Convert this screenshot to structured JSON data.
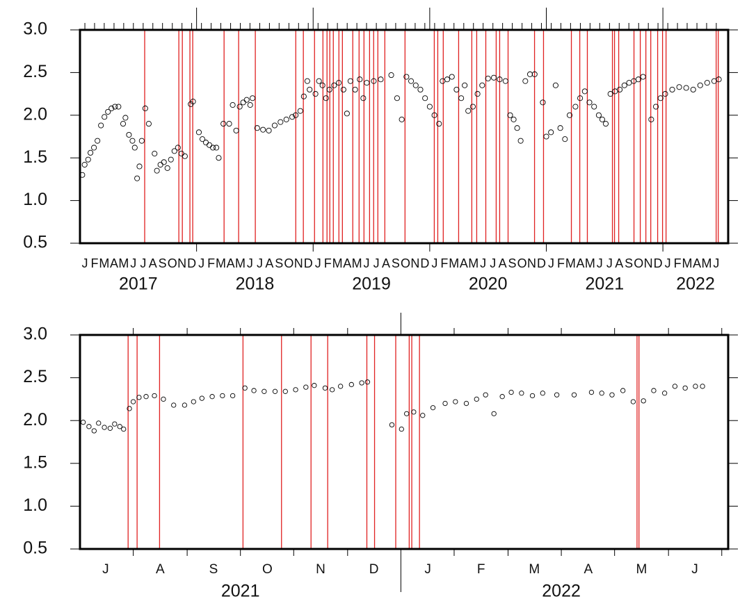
{
  "chart_data": [
    {
      "type": "scatter",
      "color": "#000000",
      "event_color": "#e02020",
      "xlim": [
        2017.0,
        2022.56
      ],
      "ylim": [
        0.5,
        3.0
      ],
      "yticks": [
        0.5,
        {
          "value": 1,
          "label": "1.0"
        },
        1.5,
        {
          "value": 2,
          "label": "2.0"
        },
        2.5,
        {
          "value": 3,
          "label": "3.0"
        }
      ],
      "xticks": [
        {
          "value": 2017.042,
          "label": "J"
        },
        {
          "value": 2017.125,
          "label": "F"
        },
        {
          "value": 2017.208,
          "label": "M"
        },
        {
          "value": 2017.292,
          "label": "A"
        },
        {
          "value": 2017.375,
          "label": "M"
        },
        {
          "value": 2017.458,
          "label": "J"
        },
        {
          "value": 2017.542,
          "label": "J"
        },
        {
          "value": 2017.625,
          "label": "A"
        },
        {
          "value": 2017.708,
          "label": "S"
        },
        {
          "value": 2017.792,
          "label": "O"
        },
        {
          "value": 2017.875,
          "label": "N"
        },
        {
          "value": 2017.958,
          "label": "D"
        },
        {
          "value": 2018.042,
          "label": "J"
        },
        {
          "value": 2018.125,
          "label": "F"
        },
        {
          "value": 2018.208,
          "label": "M"
        },
        {
          "value": 2018.292,
          "label": "A"
        },
        {
          "value": 2018.375,
          "label": "M"
        },
        {
          "value": 2018.458,
          "label": "J"
        },
        {
          "value": 2018.542,
          "label": "J"
        },
        {
          "value": 2018.625,
          "label": "A"
        },
        {
          "value": 2018.708,
          "label": "S"
        },
        {
          "value": 2018.792,
          "label": "O"
        },
        {
          "value": 2018.875,
          "label": "N"
        },
        {
          "value": 2018.958,
          "label": "D"
        },
        {
          "value": 2019.042,
          "label": "J"
        },
        {
          "value": 2019.125,
          "label": "F"
        },
        {
          "value": 2019.208,
          "label": "M"
        },
        {
          "value": 2019.292,
          "label": "A"
        },
        {
          "value": 2019.375,
          "label": "M"
        },
        {
          "value": 2019.458,
          "label": "J"
        },
        {
          "value": 2019.542,
          "label": "J"
        },
        {
          "value": 2019.625,
          "label": "A"
        },
        {
          "value": 2019.708,
          "label": "S"
        },
        {
          "value": 2019.792,
          "label": "O"
        },
        {
          "value": 2019.875,
          "label": "N"
        },
        {
          "value": 2019.958,
          "label": "D"
        },
        {
          "value": 2020.042,
          "label": "J"
        },
        {
          "value": 2020.125,
          "label": "F"
        },
        {
          "value": 2020.208,
          "label": "M"
        },
        {
          "value": 2020.292,
          "label": "A"
        },
        {
          "value": 2020.375,
          "label": "M"
        },
        {
          "value": 2020.458,
          "label": "J"
        },
        {
          "value": 2020.542,
          "label": "J"
        },
        {
          "value": 2020.625,
          "label": "A"
        },
        {
          "value": 2020.708,
          "label": "S"
        },
        {
          "value": 2020.792,
          "label": "O"
        },
        {
          "value": 2020.875,
          "label": "N"
        },
        {
          "value": 2020.958,
          "label": "D"
        },
        {
          "value": 2021.042,
          "label": "J"
        },
        {
          "value": 2021.125,
          "label": "F"
        },
        {
          "value": 2021.208,
          "label": "M"
        },
        {
          "value": 2021.292,
          "label": "A"
        },
        {
          "value": 2021.375,
          "label": "M"
        },
        {
          "value": 2021.458,
          "label": "J"
        },
        {
          "value": 2021.542,
          "label": "J"
        },
        {
          "value": 2021.625,
          "label": "A"
        },
        {
          "value": 2021.708,
          "label": "S"
        },
        {
          "value": 2021.792,
          "label": "O"
        },
        {
          "value": 2021.875,
          "label": "N"
        },
        {
          "value": 2021.958,
          "label": "D"
        },
        {
          "value": 2022.042,
          "label": "J"
        },
        {
          "value": 2022.125,
          "label": "F"
        },
        {
          "value": 2022.208,
          "label": "M"
        },
        {
          "value": 2022.292,
          "label": "A"
        },
        {
          "value": 2022.375,
          "label": "M"
        },
        {
          "value": 2022.458,
          "label": "J"
        }
      ],
      "year_ticks": [
        2018,
        2019,
        2020,
        2021,
        2022
      ],
      "year_labels": [
        {
          "value": 2017.5,
          "label": "2017"
        },
        {
          "value": 2018.5,
          "label": "2018"
        },
        {
          "value": 2019.5,
          "label": "2019"
        },
        {
          "value": 2020.5,
          "label": "2020"
        },
        {
          "value": 2021.5,
          "label": "2021"
        },
        {
          "value": 2022.28,
          "label": "2022"
        }
      ],
      "x": [
        2017.02,
        2017.04,
        2017.07,
        2017.09,
        2017.12,
        2017.15,
        2017.18,
        2017.21,
        2017.24,
        2017.27,
        2017.3,
        2017.33,
        2017.37,
        2017.39,
        2017.42,
        2017.45,
        2017.47,
        2017.49,
        2017.51,
        2017.53,
        2017.56,
        2017.59,
        2017.64,
        2017.66,
        2017.69,
        2017.72,
        2017.75,
        2017.78,
        2017.81,
        2017.84,
        2017.87,
        2017.9,
        2017.95,
        2017.97,
        2018.02,
        2018.05,
        2018.08,
        2018.11,
        2018.14,
        2018.17,
        2018.19,
        2018.23,
        2018.28,
        2018.31,
        2018.34,
        2018.37,
        2018.4,
        2018.43,
        2018.46,
        2018.48,
        2018.52,
        2018.57,
        2018.62,
        2018.67,
        2018.72,
        2018.77,
        2018.82,
        2018.85,
        2018.89,
        2018.92,
        2018.95,
        2018.97,
        2019.02,
        2019.05,
        2019.08,
        2019.11,
        2019.14,
        2019.18,
        2019.22,
        2019.26,
        2019.29,
        2019.32,
        2019.36,
        2019.4,
        2019.43,
        2019.46,
        2019.52,
        2019.58,
        2019.67,
        2019.72,
        2019.76,
        2019.8,
        2019.84,
        2019.88,
        2019.92,
        2019.96,
        2020.0,
        2020.04,
        2020.08,
        2020.11,
        2020.15,
        2020.19,
        2020.23,
        2020.27,
        2020.3,
        2020.33,
        2020.37,
        2020.41,
        2020.45,
        2020.5,
        2020.55,
        2020.6,
        2020.65,
        2020.69,
        2020.72,
        2020.75,
        2020.78,
        2020.82,
        2020.86,
        2020.9,
        2020.97,
        2021.0,
        2021.04,
        2021.08,
        2021.12,
        2021.16,
        2021.2,
        2021.25,
        2021.29,
        2021.33,
        2021.37,
        2021.41,
        2021.45,
        2021.48,
        2021.51,
        2021.55,
        2021.59,
        2021.63,
        2021.67,
        2021.71,
        2021.75,
        2021.79,
        2021.83,
        2021.9,
        2021.94,
        2021.98,
        2022.02,
        2022.08,
        2022.14,
        2022.2,
        2022.26,
        2022.32,
        2022.38,
        2022.44,
        2022.48
      ],
      "values": [
        1.3,
        1.42,
        1.48,
        1.56,
        1.62,
        1.7,
        1.88,
        1.98,
        2.04,
        2.08,
        2.1,
        2.1,
        1.9,
        1.97,
        1.77,
        1.7,
        1.62,
        1.26,
        1.4,
        1.7,
        2.08,
        1.9,
        1.55,
        1.35,
        1.42,
        1.45,
        1.38,
        1.48,
        1.58,
        1.62,
        1.55,
        1.52,
        2.13,
        2.16,
        1.8,
        1.72,
        1.68,
        1.65,
        1.62,
        1.62,
        1.5,
        1.9,
        1.9,
        2.12,
        1.82,
        2.1,
        2.15,
        2.18,
        2.12,
        2.2,
        1.85,
        1.83,
        1.82,
        1.88,
        1.92,
        1.95,
        1.98,
        2.0,
        2.05,
        2.22,
        2.4,
        2.3,
        2.25,
        2.4,
        2.35,
        2.2,
        2.3,
        2.35,
        2.38,
        2.3,
        2.02,
        2.4,
        2.3,
        2.42,
        2.2,
        2.38,
        2.4,
        2.42,
        2.47,
        2.2,
        1.95,
        2.45,
        2.4,
        2.35,
        2.3,
        2.2,
        2.1,
        2.0,
        1.9,
        2.4,
        2.42,
        2.45,
        2.3,
        2.2,
        2.35,
        2.05,
        2.1,
        2.25,
        2.35,
        2.43,
        2.44,
        2.42,
        2.4,
        2.0,
        1.95,
        1.85,
        1.7,
        2.4,
        2.48,
        2.48,
        2.15,
        1.75,
        1.8,
        2.35,
        1.85,
        1.72,
        2.0,
        2.1,
        2.2,
        2.28,
        2.15,
        2.1,
        2.0,
        1.95,
        1.9,
        2.25,
        2.28,
        2.3,
        2.35,
        2.38,
        2.4,
        2.42,
        2.45,
        1.95,
        2.1,
        2.2,
        2.25,
        2.3,
        2.33,
        2.32,
        2.3,
        2.35,
        2.38,
        2.4,
        2.42
      ],
      "events": [
        2017.555,
        2017.848,
        2017.878,
        2017.943,
        2017.967,
        2018.236,
        2018.361,
        2018.504,
        2018.851,
        2018.916,
        2019.012,
        2019.084,
        2019.119,
        2019.143,
        2019.173,
        2019.221,
        2019.251,
        2019.34,
        2019.394,
        2019.436,
        2019.484,
        2019.519,
        2019.555,
        2019.615,
        2019.788,
        2020.039,
        2020.069,
        2020.116,
        2020.248,
        2020.361,
        2020.403,
        2020.481,
        2020.57,
        2020.6,
        2020.672,
        2020.899,
        2020.976,
        2021.215,
        2021.287,
        2021.352,
        2021.567,
        2021.585,
        2021.621,
        2021.752,
        2021.806,
        2021.854,
        2021.896,
        2021.955,
        2021.997,
        2022.027,
        2022.457,
        2022.475
      ]
    },
    {
      "type": "scatter",
      "color": "#000000",
      "event_color": "#e02020",
      "xlim": [
        2021.5,
        2022.51
      ],
      "ylim": [
        0.5,
        3.0
      ],
      "yticks": [
        0.5,
        {
          "value": 1,
          "label": "1.0"
        },
        1.5,
        {
          "value": 2,
          "label": "2.0"
        },
        2.5,
        {
          "value": 3,
          "label": "3.0"
        }
      ],
      "xticks": [
        {
          "value": 2021.54,
          "label": "J"
        },
        {
          "value": 2021.625,
          "label": "A"
        },
        {
          "value": 2021.708,
          "label": "S"
        },
        {
          "value": 2021.792,
          "label": "O"
        },
        {
          "value": 2021.875,
          "label": "N"
        },
        {
          "value": 2021.958,
          "label": "D"
        },
        {
          "value": 2022.042,
          "label": "J"
        },
        {
          "value": 2022.125,
          "label": "F"
        },
        {
          "value": 2022.208,
          "label": "M"
        },
        {
          "value": 2022.292,
          "label": "A"
        },
        {
          "value": 2022.375,
          "label": "M"
        },
        {
          "value": 2022.458,
          "label": "J"
        }
      ],
      "month_ticks": [
        2021.583,
        2021.667,
        2021.75,
        2021.833,
        2021.917,
        2022.083,
        2022.167,
        2022.25,
        2022.333,
        2022.417,
        2022.5
      ],
      "year_ticks": [
        2022
      ],
      "year_labels": [
        {
          "value": 2021.75,
          "label": "2021"
        },
        {
          "value": 2022.25,
          "label": "2022"
        }
      ],
      "x": [
        2021.505,
        2021.514,
        2021.522,
        2021.529,
        2021.538,
        2021.547,
        2021.554,
        2021.562,
        2021.568,
        2021.577,
        2021.583,
        2021.592,
        2021.603,
        2021.616,
        2021.63,
        2021.646,
        2021.663,
        2021.677,
        2021.69,
        2021.706,
        2021.722,
        2021.738,
        2021.757,
        2021.771,
        2021.787,
        2021.804,
        2021.82,
        2021.836,
        2021.852,
        2021.865,
        2021.882,
        2021.893,
        2021.906,
        2021.923,
        2021.939,
        2021.948,
        2021.986,
        2022.001,
        2022.009,
        2022.02,
        2022.034,
        2022.05,
        2022.069,
        2022.085,
        2022.102,
        2022.118,
        2022.132,
        2022.145,
        2022.158,
        2022.172,
        2022.188,
        2022.205,
        2022.221,
        2022.243,
        2022.27,
        2022.297,
        2022.313,
        2022.329,
        2022.346,
        2022.362,
        2022.378,
        2022.394,
        2022.411,
        2022.427,
        2022.443,
        2022.459,
        2022.47
      ],
      "values": [
        1.98,
        1.93,
        1.88,
        1.97,
        1.92,
        1.91,
        1.96,
        1.93,
        1.9,
        2.14,
        2.22,
        2.27,
        2.28,
        2.29,
        2.25,
        2.18,
        2.18,
        2.22,
        2.26,
        2.28,
        2.29,
        2.29,
        2.38,
        2.35,
        2.34,
        2.34,
        2.34,
        2.36,
        2.39,
        2.41,
        2.38,
        2.36,
        2.4,
        2.42,
        2.44,
        2.45,
        1.95,
        1.9,
        2.08,
        2.1,
        2.06,
        2.15,
        2.2,
        2.22,
        2.2,
        2.25,
        2.3,
        2.08,
        2.28,
        2.33,
        2.32,
        2.29,
        2.32,
        2.3,
        2.3,
        2.33,
        2.32,
        2.3,
        2.35,
        2.22,
        2.23,
        2.35,
        2.32,
        2.4,
        2.38,
        2.4,
        2.4
      ],
      "events": [
        2021.575,
        2021.589,
        2021.624,
        2021.754,
        2021.814,
        2021.86,
        2021.886,
        2021.947,
        2021.959,
        2021.992,
        2022.013,
        2022.017,
        2022.029,
        2022.368,
        2022.371
      ]
    }
  ]
}
